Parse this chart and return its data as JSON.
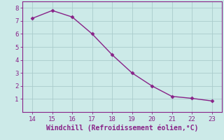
{
  "x": [
    14,
    15,
    16,
    17,
    18,
    19,
    20,
    21,
    22,
    23
  ],
  "y": [
    7.2,
    7.8,
    7.3,
    6.0,
    4.4,
    3.0,
    2.0,
    1.2,
    1.05,
    0.85
  ],
  "line_color": "#882288",
  "marker": "D",
  "marker_size": 2.5,
  "line_width": 1.0,
  "xlabel": "Windchill (Refroidissement éolien,°C)",
  "xlabel_color": "#882288",
  "xlabel_fontsize": 7,
  "bg_color": "#cceae8",
  "grid_color": "#aacccc",
  "axis_color": "#882288",
  "tick_color": "#882288",
  "tick_fontsize": 6.5,
  "xlim": [
    13.5,
    23.5
  ],
  "ylim": [
    0.0,
    8.5
  ],
  "xticks": [
    14,
    15,
    16,
    17,
    18,
    19,
    20,
    21,
    22,
    23
  ],
  "yticks": [
    1,
    2,
    3,
    4,
    5,
    6,
    7,
    8
  ]
}
